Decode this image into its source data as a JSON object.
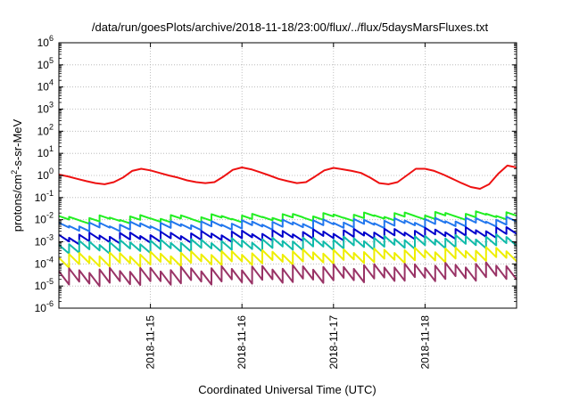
{
  "chart_data": {
    "type": "line",
    "title": "/data/run/goesPlots/archive/2018-11-18/23:00/flux/../flux/5daysMarsFluxes.txt",
    "xlabel": "Coordinated Universal Time (UTC)",
    "ylabel": {
      "prefix": "protons/cm",
      "sup": "2",
      "suffix": "-s-sr-MeV"
    },
    "yscale": "log",
    "ylim": [
      1e-06,
      1000000.0
    ],
    "y_ticks": [
      {
        "value": 1e-06,
        "base": "10",
        "exp": "-6"
      },
      {
        "value": 1e-05,
        "base": "10",
        "exp": "-5"
      },
      {
        "value": 0.0001,
        "base": "10",
        "exp": "-4"
      },
      {
        "value": 0.001,
        "base": "10",
        "exp": "-3"
      },
      {
        "value": 0.01,
        "base": "10",
        "exp": "-2"
      },
      {
        "value": 0.1,
        "base": "10",
        "exp": "-1"
      },
      {
        "value": 1,
        "base": "10",
        "exp": "0"
      },
      {
        "value": 10,
        "base": "10",
        "exp": "1"
      },
      {
        "value": 100,
        "base": "10",
        "exp": "2"
      },
      {
        "value": 1000,
        "base": "10",
        "exp": "3"
      },
      {
        "value": 10000,
        "base": "10",
        "exp": "4"
      },
      {
        "value": 100000,
        "base": "10",
        "exp": "5"
      },
      {
        "value": 1000000,
        "base": "10",
        "exp": "6"
      }
    ],
    "xlim": [
      "2018-11-14 00:00",
      "2018-11-19 00:00"
    ],
    "x_ticks": [
      {
        "value": "2018-11-15 00:00",
        "label": "2018-11-15"
      },
      {
        "value": "2018-11-16 00:00",
        "label": "2018-11-16"
      },
      {
        "value": "2018-11-17 00:00",
        "label": "2018-11-17"
      },
      {
        "value": "2018-11-18 00:00",
        "label": "2018-11-18"
      }
    ],
    "grid": true,
    "series": [
      {
        "color": "#ee1111",
        "x": [
          "2018-11-14 00:00",
          "2018-11-14 02:24",
          "2018-11-14 04:48",
          "2018-11-14 07:12",
          "2018-11-14 09:36",
          "2018-11-14 12:00",
          "2018-11-14 14:24",
          "2018-11-14 16:48",
          "2018-11-14 19:12",
          "2018-11-14 21:36",
          "2018-11-15 00:00",
          "2018-11-15 02:24",
          "2018-11-15 04:48",
          "2018-11-15 07:12",
          "2018-11-15 09:36",
          "2018-11-15 12:00",
          "2018-11-15 14:24",
          "2018-11-15 16:48",
          "2018-11-15 19:12",
          "2018-11-15 21:36",
          "2018-11-16 00:00",
          "2018-11-16 02:24",
          "2018-11-16 04:48",
          "2018-11-16 07:12",
          "2018-11-16 09:36",
          "2018-11-16 12:00",
          "2018-11-16 14:24",
          "2018-11-16 16:48",
          "2018-11-16 19:12",
          "2018-11-16 21:36",
          "2018-11-17 00:00",
          "2018-11-17 02:24",
          "2018-11-17 04:48",
          "2018-11-17 07:12",
          "2018-11-17 09:36",
          "2018-11-17 12:00",
          "2018-11-17 14:24",
          "2018-11-17 16:48",
          "2018-11-17 19:12",
          "2018-11-17 21:36",
          "2018-11-18 00:00",
          "2018-11-18 02:24",
          "2018-11-18 04:48",
          "2018-11-18 07:12",
          "2018-11-18 09:36",
          "2018-11-18 12:00",
          "2018-11-18 14:24",
          "2018-11-18 16:48",
          "2018-11-18 19:12",
          "2018-11-18 21:36",
          "2018-11-19 00:00"
        ],
        "y": [
          1.1,
          0.9,
          0.7,
          0.55,
          0.45,
          0.4,
          0.5,
          0.8,
          1.6,
          2.0,
          1.7,
          1.3,
          1.0,
          0.8,
          0.6,
          0.5,
          0.45,
          0.5,
          0.9,
          1.8,
          2.3,
          1.9,
          1.4,
          1.0,
          0.7,
          0.55,
          0.45,
          0.5,
          0.9,
          1.7,
          2.2,
          1.9,
          1.6,
          1.3,
          0.8,
          0.45,
          0.4,
          0.5,
          1.0,
          2.0,
          2.0,
          1.6,
          1.1,
          0.7,
          0.45,
          0.3,
          0.25,
          0.4,
          1.2,
          2.8,
          2.3
        ]
      },
      {
        "color": "#22ee22",
        "x": [
          "2018-11-14 00:00",
          "2018-11-19 00:00"
        ],
        "y": [
          0.012,
          0.02
        ],
        "cycles_per_day": 9,
        "decay_ratio": 0.7
      },
      {
        "color": "#2277ee",
        "x": [
          "2018-11-14 00:00",
          "2018-11-19 00:00"
        ],
        "y": [
          0.006,
          0.011
        ],
        "cycles_per_day": 9,
        "decay_ratio": 0.6
      },
      {
        "color": "#0000cc",
        "x": [
          "2018-11-14 00:00",
          "2018-11-19 00:00"
        ],
        "y": [
          0.002,
          0.004
        ],
        "cycles_per_day": 9,
        "decay_ratio": 0.5
      },
      {
        "color": "#11bbaa",
        "x": [
          "2018-11-14 00:00",
          "2018-11-19 00:00"
        ],
        "y": [
          0.0009,
          0.0018
        ],
        "cycles_per_day": 9,
        "decay_ratio": 0.4
      },
      {
        "color": "#eeee00",
        "x": [
          "2018-11-14 00:00",
          "2018-11-19 00:00"
        ],
        "y": [
          0.00025,
          0.0005
        ],
        "cycles_per_day": 9,
        "decay_ratio": 0.35
      },
      {
        "color": "#993366",
        "x": [
          "2018-11-14 00:00",
          "2018-11-19 00:00"
        ],
        "y": [
          5e-05,
          0.0001
        ],
        "cycles_per_day": 9,
        "decay_ratio": 0.25
      }
    ]
  }
}
